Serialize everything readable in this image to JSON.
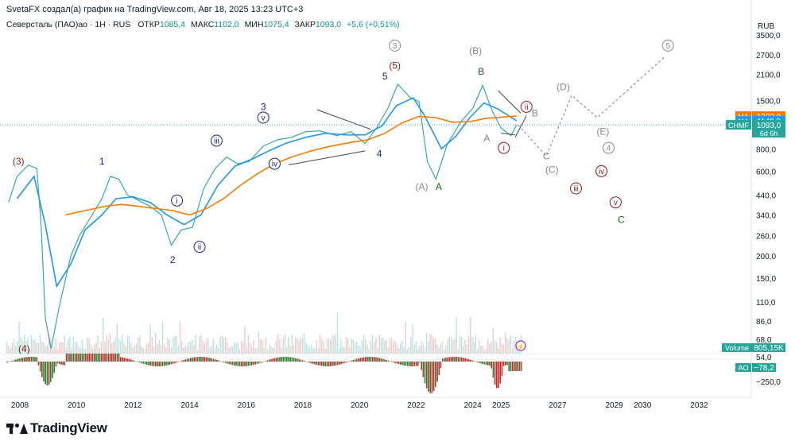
{
  "header": {
    "text": "SvetaFX создал(а) график на TradingView.com, Авг 18, 2025 13:23 UTC+3"
  },
  "legend": {
    "title": "Северсталь (ПАО)ао · 1Н · RUS",
    "open_label": "ОТКР",
    "open": "1085,4",
    "high_label": "МАКС",
    "high": "1102,0",
    "low_label": "МИН",
    "low": "1075,4",
    "close_label": "ЗАКР",
    "close": "1093,0",
    "change": "+5,6 (+0,51%)"
  },
  "currency": "RUB",
  "brand": {
    "name": "TradingView"
  },
  "price_badges": [
    {
      "name": "ma-orange-badge",
      "label": "MA",
      "value": "1223,9",
      "color": "#f57c00",
      "price": 1223.9
    },
    {
      "name": "ma-blue-badge",
      "label": "MA",
      "value": "1149,9",
      "color": "#2196f3",
      "price": 1149.9
    },
    {
      "name": "price-badge",
      "label": "CHMF",
      "value": "1093,0",
      "sub": "6d 6h",
      "color": "#26a69a",
      "price": 1093.0
    }
  ],
  "volume_badge": {
    "label": "Volume",
    "value": "805,15K",
    "color": "#26a69a"
  },
  "ao_badge": {
    "label": "AO",
    "value": "−78,2",
    "color": "#26a69a"
  },
  "chart_data": {
    "type": "line",
    "instrument": "Северсталь (ПАО)ао",
    "interval": "1Н",
    "scale": "log",
    "x_axis": {
      "ticks": [
        "2008",
        "2010",
        "2012",
        "2014",
        "2016",
        "2018",
        "2020",
        "2022",
        "2024",
        "2025",
        "2027",
        "2029",
        "2030",
        "2032"
      ],
      "tick_values": [
        2008,
        2010,
        2012,
        2014,
        2016,
        2018,
        2020,
        2022,
        2024,
        2025,
        2027,
        2029,
        2030,
        2032
      ]
    },
    "y_axis": {
      "ticks": [
        "3500,0",
        "2700,0",
        "2100,0",
        "1500,0",
        "1100,0",
        "800,0",
        "600,0",
        "440,0",
        "340,0",
        "260,0",
        "200,0",
        "150,0",
        "110,0",
        "86,0",
        "68,0",
        "54,0"
      ],
      "tick_values": [
        3500,
        2700,
        2100,
        1500,
        1100,
        800,
        600,
        440,
        340,
        260,
        200,
        150,
        110,
        86,
        68,
        54
      ]
    },
    "series": [
      {
        "name": "CHMF",
        "color": "#26a69a",
        "points": [
          [
            2007.6,
            400
          ],
          [
            2007.9,
            560
          ],
          [
            2008.3,
            650
          ],
          [
            2008.6,
            620
          ],
          [
            2008.75,
            300
          ],
          [
            2008.9,
            90
          ],
          [
            2009.1,
            60
          ],
          [
            2009.4,
            105
          ],
          [
            2009.8,
            200
          ],
          [
            2010.1,
            260
          ],
          [
            2010.5,
            330
          ],
          [
            2010.9,
            420
          ],
          [
            2011.2,
            560
          ],
          [
            2011.5,
            540
          ],
          [
            2011.8,
            440
          ],
          [
            2012.2,
            410
          ],
          [
            2012.6,
            380
          ],
          [
            2013.0,
            340
          ],
          [
            2013.35,
            230
          ],
          [
            2013.7,
            280
          ],
          [
            2014.1,
            290
          ],
          [
            2014.5,
            480
          ],
          [
            2014.9,
            620
          ],
          [
            2015.3,
            720
          ],
          [
            2015.7,
            660
          ],
          [
            2016.1,
            680
          ],
          [
            2016.6,
            830
          ],
          [
            2017.1,
            900
          ],
          [
            2017.6,
            930
          ],
          [
            2018.1,
            1000
          ],
          [
            2018.6,
            1010
          ],
          [
            2019.2,
            950
          ],
          [
            2019.7,
            1000
          ],
          [
            2020.2,
            860
          ],
          [
            2020.6,
            1050
          ],
          [
            2021.0,
            1350
          ],
          [
            2021.35,
            1850
          ],
          [
            2021.8,
            1550
          ],
          [
            2022.1,
            1480
          ],
          [
            2022.4,
            680
          ],
          [
            2022.7,
            540
          ],
          [
            2023.1,
            850
          ],
          [
            2023.6,
            1150
          ],
          [
            2024.0,
            1350
          ],
          [
            2024.35,
            1820
          ],
          [
            2024.7,
            1300
          ],
          [
            2025.0,
            1050
          ],
          [
            2025.35,
            950
          ],
          [
            2025.55,
            1093
          ]
        ]
      },
      {
        "name": "MA",
        "color": "#2196f3",
        "points": [
          [
            2007.9,
            420
          ],
          [
            2008.5,
            560
          ],
          [
            2008.9,
            300
          ],
          [
            2009.3,
            135
          ],
          [
            2009.8,
            180
          ],
          [
            2010.3,
            280
          ],
          [
            2010.9,
            340
          ],
          [
            2011.4,
            420
          ],
          [
            2012.0,
            430
          ],
          [
            2012.6,
            400
          ],
          [
            2013.2,
            340
          ],
          [
            2013.8,
            300
          ],
          [
            2014.4,
            340
          ],
          [
            2015.0,
            500
          ],
          [
            2015.6,
            640
          ],
          [
            2016.2,
            700
          ],
          [
            2016.8,
            780
          ],
          [
            2017.4,
            860
          ],
          [
            2018.1,
            930
          ],
          [
            2018.8,
            980
          ],
          [
            2019.5,
            960
          ],
          [
            2020.2,
            960
          ],
          [
            2020.8,
            1080
          ],
          [
            2021.3,
            1400
          ],
          [
            2021.9,
            1550
          ],
          [
            2022.3,
            1230
          ],
          [
            2022.9,
            800
          ],
          [
            2023.4,
            940
          ],
          [
            2023.9,
            1200
          ],
          [
            2024.4,
            1450
          ],
          [
            2024.9,
            1340
          ],
          [
            2025.55,
            1149.9
          ]
        ]
      },
      {
        "name": "MA",
        "color": "#f57c00",
        "points": [
          [
            2009.6,
            340
          ],
          [
            2010.3,
            360
          ],
          [
            2011.0,
            380
          ],
          [
            2011.6,
            390
          ],
          [
            2012.2,
            380
          ],
          [
            2012.8,
            370
          ],
          [
            2013.4,
            360
          ],
          [
            2014.0,
            340
          ],
          [
            2014.6,
            370
          ],
          [
            2015.2,
            420
          ],
          [
            2015.8,
            500
          ],
          [
            2016.4,
            580
          ],
          [
            2017.0,
            660
          ],
          [
            2017.6,
            720
          ],
          [
            2018.3,
            780
          ],
          [
            2019.0,
            830
          ],
          [
            2019.7,
            870
          ],
          [
            2020.3,
            900
          ],
          [
            2020.9,
            980
          ],
          [
            2021.5,
            1120
          ],
          [
            2022.1,
            1220
          ],
          [
            2022.7,
            1200
          ],
          [
            2023.3,
            1130
          ],
          [
            2023.9,
            1140
          ],
          [
            2024.5,
            1190
          ],
          [
            2025.55,
            1223.9
          ]
        ]
      },
      {
        "name": "Volume",
        "color": "#26a69a",
        "last": "805,15K"
      },
      {
        "name": "AO",
        "color": "#26a69a",
        "last": "−78,2"
      }
    ],
    "wave_labels": [
      {
        "text": "(3)",
        "x": 2007.95,
        "y": 680,
        "color": "#8b1a1a",
        "style": "plain"
      },
      {
        "text": "(4)",
        "x": 2008.15,
        "y": 60,
        "color": "#8b1a1a",
        "style": "plain"
      },
      {
        "text": "1",
        "x": 2010.9,
        "y": 680,
        "color": "#1a237e",
        "style": "plain"
      },
      {
        "text": "2",
        "x": 2013.4,
        "y": 190,
        "color": "#1a237e",
        "style": "plain"
      },
      {
        "text": "3",
        "x": 2016.6,
        "y": 1380,
        "color": "#1a237e",
        "style": "plain"
      },
      {
        "text": "4",
        "x": 2020.7,
        "y": 750,
        "color": "#1a237e",
        "style": "plain"
      },
      {
        "text": "5",
        "x": 2020.9,
        "y": 2050,
        "color": "#1a237e",
        "style": "plain"
      },
      {
        "text": "(5)",
        "x": 2021.25,
        "y": 2350,
        "color": "#8b1a1a",
        "style": "plain"
      },
      {
        "text": "3",
        "x": 2021.25,
        "y": 3050,
        "color": "#888888",
        "style": "circle"
      },
      {
        "text": "i",
        "x": 2013.55,
        "y": 410,
        "color": "#1a237e",
        "style": "circle"
      },
      {
        "text": "ii",
        "x": 2014.35,
        "y": 225,
        "color": "#1a237e",
        "style": "circle"
      },
      {
        "text": "iii",
        "x": 2014.95,
        "y": 890,
        "color": "#1a237e",
        "style": "circle"
      },
      {
        "text": "iv",
        "x": 2017.0,
        "y": 660,
        "color": "#1a237e",
        "style": "circle"
      },
      {
        "text": "v",
        "x": 2016.6,
        "y": 1200,
        "color": "#1a237e",
        "style": "circle"
      },
      {
        "text": "(A)",
        "x": 2022.2,
        "y": 490,
        "color": "#888888",
        "style": "plain"
      },
      {
        "text": "A",
        "x": 2022.8,
        "y": 490,
        "color": "#1b5e20",
        "style": "plain"
      },
      {
        "text": "(B)",
        "x": 2024.1,
        "y": 2850,
        "color": "#888888",
        "style": "plain"
      },
      {
        "text": "B",
        "x": 2024.3,
        "y": 2180,
        "color": "#1b5e20",
        "style": "plain"
      },
      {
        "text": "A",
        "x": 2024.5,
        "y": 920,
        "color": "#888888",
        "style": "plain"
      },
      {
        "text": "B",
        "x": 2026.2,
        "y": 1270,
        "color": "#888888",
        "style": "plain"
      },
      {
        "text": "C",
        "x": 2026.6,
        "y": 730,
        "color": "#888888",
        "style": "plain"
      },
      {
        "text": "(C)",
        "x": 2026.8,
        "y": 610,
        "color": "#888888",
        "style": "plain"
      },
      {
        "text": "(D)",
        "x": 2027.2,
        "y": 1780,
        "color": "#888888",
        "style": "plain"
      },
      {
        "text": "(E)",
        "x": 2028.6,
        "y": 1000,
        "color": "#888888",
        "style": "plain"
      },
      {
        "text": "4",
        "x": 2028.8,
        "y": 810,
        "color": "#888888",
        "style": "circle"
      },
      {
        "text": "5",
        "x": 2030.9,
        "y": 3050,
        "color": "#888888",
        "style": "circle"
      },
      {
        "text": "ii",
        "x": 2025.9,
        "y": 1380,
        "color": "#8b1a1a",
        "style": "circle"
      },
      {
        "text": "i",
        "x": 2025.1,
        "y": 810,
        "color": "#8b1a1a",
        "style": "circle"
      },
      {
        "text": "iii",
        "x": 2027.65,
        "y": 480,
        "color": "#8b1a1a",
        "style": "circle"
      },
      {
        "text": "iv",
        "x": 2028.55,
        "y": 600,
        "color": "#8b1a1a",
        "style": "circle"
      },
      {
        "text": "v",
        "x": 2029.05,
        "y": 400,
        "color": "#8b1a1a",
        "style": "circle"
      },
      {
        "text": "C",
        "x": 2029.25,
        "y": 320,
        "color": "#1b5e20",
        "style": "plain"
      }
    ],
    "projection": {
      "color": "#888888",
      "points": [
        [
          2025.6,
          1090
        ],
        [
          2026.6,
          730
        ],
        [
          2027.5,
          1600
        ],
        [
          2028.4,
          1200
        ],
        [
          2030.8,
          2650
        ]
      ]
    },
    "trendlines": [
      [
        [
          2018.5,
          1330
        ],
        [
          2020.4,
          1030
        ]
      ],
      [
        [
          2017.5,
          650
        ],
        [
          2020.2,
          780
        ]
      ],
      [
        [
          2024.9,
          1700
        ],
        [
          2025.7,
          1270
        ]
      ],
      [
        [
          2025.0,
          980
        ],
        [
          2025.5,
          960
        ]
      ],
      [
        [
          2025.5,
          930
        ],
        [
          2025.9,
          1230
        ]
      ]
    ],
    "grid": false,
    "legend_position": "top-left"
  }
}
